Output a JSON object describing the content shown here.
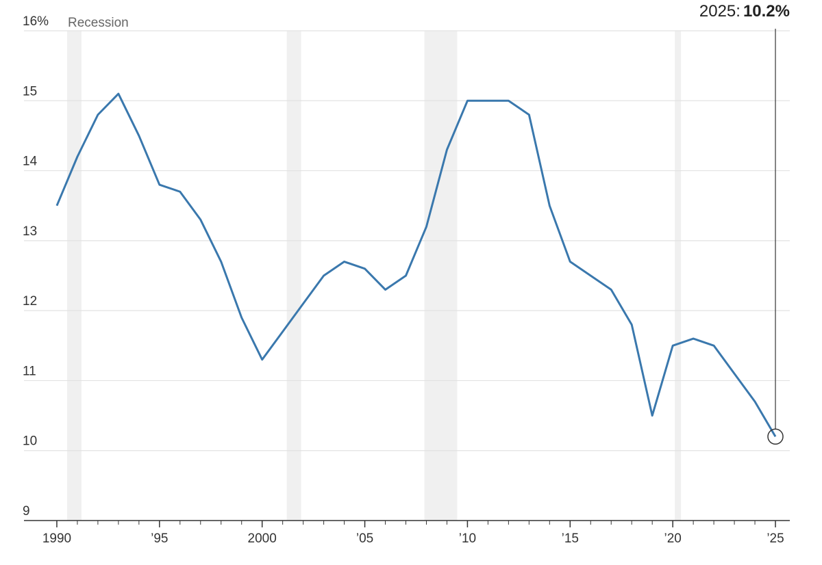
{
  "chart_data": {
    "type": "line",
    "x": [
      1990,
      1991,
      1992,
      1993,
      1994,
      1995,
      1996,
      1997,
      1998,
      1999,
      2000,
      2001,
      2002,
      2003,
      2004,
      2005,
      2006,
      2007,
      2008,
      2009,
      2010,
      2011,
      2012,
      2013,
      2014,
      2015,
      2016,
      2017,
      2018,
      2019,
      2020,
      2021,
      2022,
      2023,
      2024,
      2025
    ],
    "series": [
      {
        "color": "#3a78ad",
        "values": [
          13.5,
          14.2,
          14.8,
          15.1,
          14.5,
          13.8,
          13.7,
          13.3,
          12.7,
          11.9,
          11.3,
          11.7,
          12.1,
          12.5,
          12.7,
          12.6,
          12.3,
          12.5,
          13.2,
          14.3,
          15.0,
          15.0,
          15.0,
          14.8,
          13.5,
          12.7,
          12.5,
          12.3,
          11.8,
          10.5,
          11.5,
          11.6,
          11.5,
          11.1,
          10.7,
          10.2
        ],
        "value_labels": [
          null,
          null,
          null,
          null,
          null,
          null,
          null,
          null,
          null,
          null,
          null,
          null,
          null,
          null,
          null,
          null,
          null,
          null,
          null,
          null,
          null,
          null,
          null,
          null,
          null,
          null,
          null,
          null,
          null,
          null,
          null,
          null,
          null,
          null,
          null,
          "10.2%"
        ]
      }
    ],
    "annotation": "2025:",
    "recession_label": "Recession",
    "recession_color": "#f0f0f0",
    "recessions": [
      [
        1990.5,
        1991.2
      ],
      [
        2001.2,
        2001.9
      ],
      [
        2007.9,
        2009.5
      ],
      [
        2020.1,
        2020.4
      ]
    ],
    "xlim": [
      1988.4,
      2025.7
    ],
    "xticks": [
      {
        "value": 1990,
        "label": "1990"
      },
      {
        "value": 1995,
        "label": "’95"
      },
      {
        "value": 2000,
        "label": "2000"
      },
      {
        "value": 2005,
        "label": "’05"
      },
      {
        "value": 2010,
        "label": "’10"
      },
      {
        "value": 2015,
        "label": "’15"
      },
      {
        "value": 2020,
        "label": "’20"
      },
      {
        "value": 2025,
        "label": "’25"
      }
    ],
    "ylim": [
      9,
      16
    ],
    "yticks": [
      9,
      10,
      11,
      12,
      13,
      14,
      15,
      {
        "value": 16,
        "label": "16%"
      }
    ],
    "grid": true
  }
}
